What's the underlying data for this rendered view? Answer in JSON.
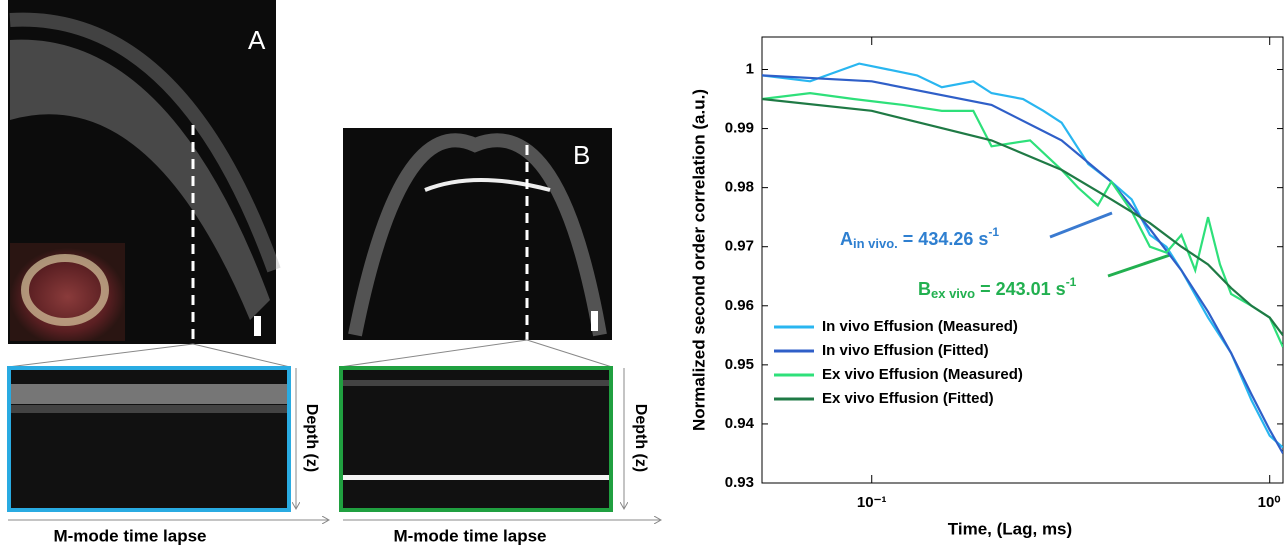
{
  "figure": {
    "panel_a": {
      "label": "A",
      "depth_label": "Depth (z)",
      "time_label": "M-mode time lapse"
    },
    "panel_b": {
      "label": "B",
      "depth_label": "Depth (z)",
      "time_label": "M-mode time lapse"
    }
  },
  "chart_data": {
    "type": "line",
    "x_label": "Time, (Lag, ms)",
    "y_label": "Normalized  second order correlation (a.u.)",
    "xlim": [
      0.053,
      1.08
    ],
    "x_log": true,
    "xticks": [
      {
        "value": 0.1,
        "label": "10⁻¹"
      },
      {
        "value": 1,
        "label": "10⁰"
      }
    ],
    "ylim": [
      0.93,
      1.0055
    ],
    "yticks": [
      0.93,
      0.94,
      0.95,
      0.96,
      0.97,
      0.98,
      0.99,
      1
    ],
    "legend": "lower left",
    "annotations": [
      {
        "text": "A",
        "sub": "in vivo.",
        "rest": " = 434.26 s",
        "sup": "-1",
        "color": "#2e7fd0"
      },
      {
        "text": "B",
        "sub": "ex vivo",
        "rest": " = 243.01 s",
        "sup": "-1",
        "color": "#22b050"
      }
    ],
    "series": [
      {
        "name": "In vivo Effusion (Measured)",
        "color": "#29b6f0",
        "x": [
          0.053,
          0.07,
          0.093,
          0.11,
          0.13,
          0.15,
          0.18,
          0.2,
          0.24,
          0.27,
          0.3,
          0.35,
          0.4,
          0.45,
          0.5,
          0.55,
          0.6,
          0.7,
          0.8,
          0.9,
          1.0,
          1.08
        ],
        "values": [
          0.999,
          0.998,
          1.001,
          1.0,
          0.999,
          0.997,
          0.998,
          0.996,
          0.995,
          0.993,
          0.991,
          0.984,
          0.981,
          0.978,
          0.972,
          0.97,
          0.966,
          0.958,
          0.952,
          0.944,
          0.938,
          0.936
        ]
      },
      {
        "name": "In vivo Effusion (Fitted)",
        "color": "#2f5fc8",
        "x": [
          0.053,
          0.1,
          0.2,
          0.3,
          0.4,
          0.5,
          0.6,
          0.7,
          0.8,
          0.9,
          1.0,
          1.08
        ],
        "values": [
          0.999,
          0.998,
          0.994,
          0.988,
          0.981,
          0.973,
          0.966,
          0.959,
          0.952,
          0.945,
          0.939,
          0.935
        ]
      },
      {
        "name": "Ex vivo Effusion (Measured)",
        "color": "#2ee07a",
        "x": [
          0.053,
          0.07,
          0.09,
          0.12,
          0.15,
          0.18,
          0.2,
          0.25,
          0.3,
          0.33,
          0.37,
          0.4,
          0.45,
          0.5,
          0.55,
          0.6,
          0.65,
          0.7,
          0.75,
          0.8,
          0.9,
          1.0,
          1.08
        ],
        "values": [
          0.995,
          0.996,
          0.995,
          0.994,
          0.993,
          0.993,
          0.987,
          0.988,
          0.983,
          0.98,
          0.977,
          0.981,
          0.976,
          0.97,
          0.969,
          0.972,
          0.966,
          0.975,
          0.967,
          0.962,
          0.96,
          0.958,
          0.953
        ]
      },
      {
        "name": "Ex vivo Effusion (Fitted)",
        "color": "#1f7a45",
        "x": [
          0.053,
          0.1,
          0.2,
          0.3,
          0.4,
          0.5,
          0.6,
          0.7,
          0.8,
          0.9,
          1.0,
          1.08
        ],
        "values": [
          0.995,
          0.993,
          0.988,
          0.983,
          0.978,
          0.974,
          0.97,
          0.967,
          0.963,
          0.96,
          0.958,
          0.955
        ]
      }
    ]
  }
}
